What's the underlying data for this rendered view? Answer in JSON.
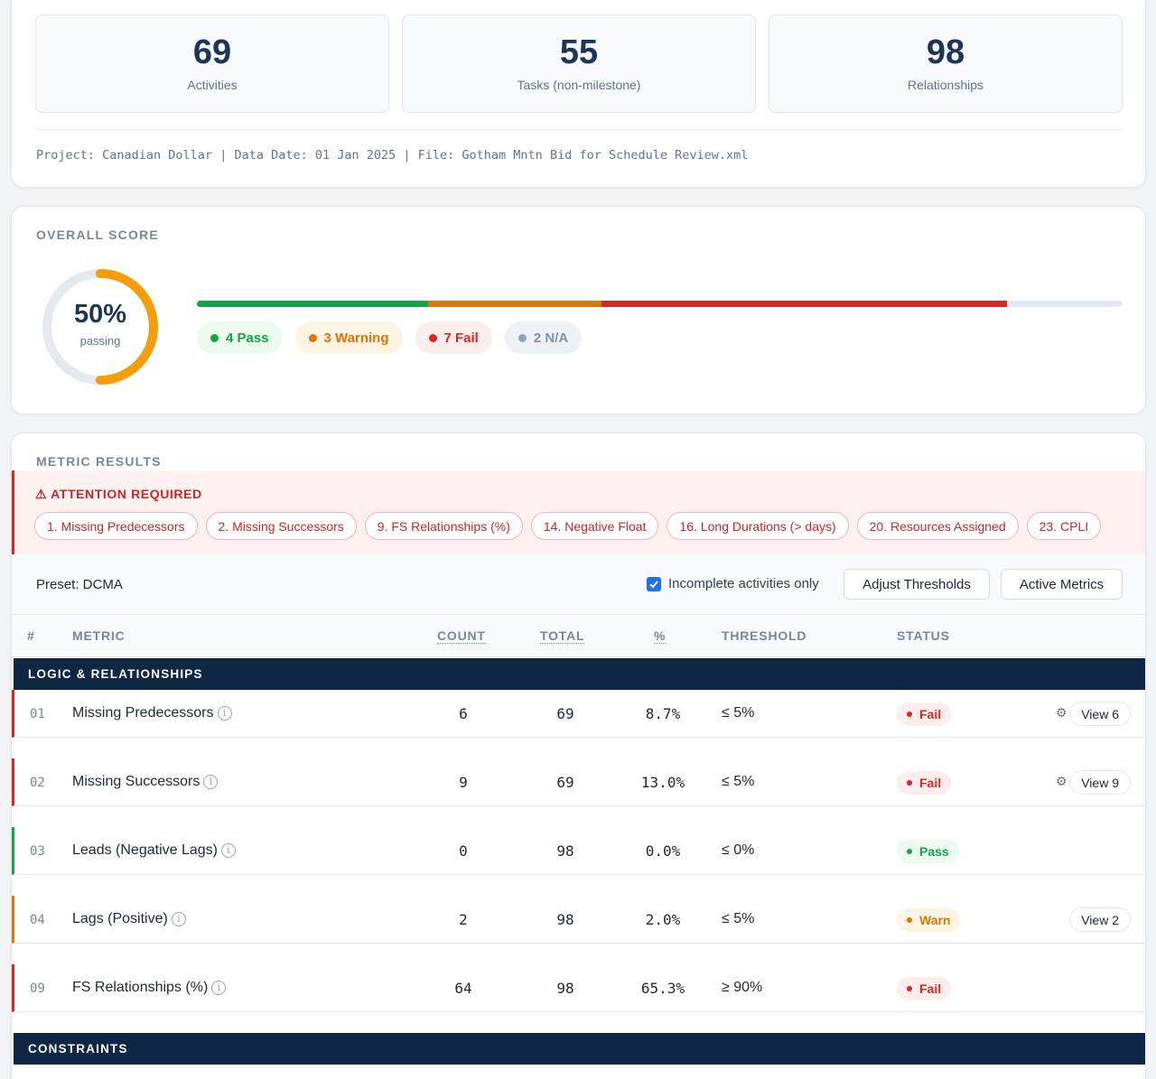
{
  "stats": [
    {
      "value": "69",
      "label": "Activities"
    },
    {
      "value": "55",
      "label": "Tasks (non-milestone)"
    },
    {
      "value": "98",
      "label": "Relationships"
    }
  ],
  "meta_line": "Project: Canadian Dollar | Data Date: 01 Jan 2025 | File: Gotham Mntn Bid for Schedule Review.xml",
  "overall": {
    "title": "OVERALL SCORE",
    "percent": "50%",
    "percent_value": 0.5,
    "passing_label": "passing",
    "counts": {
      "pass": 4,
      "warning": 3,
      "fail": 7,
      "na": 2
    },
    "pills": {
      "pass": "4 Pass",
      "warning": "3 Warning",
      "fail": "7 Fail",
      "na": "2 N/A"
    }
  },
  "colors": {
    "pass": "#16a34a",
    "warning": "#d97706",
    "fail": "#dc2626",
    "na": "#94a3b8",
    "navy": "#0f2744",
    "donut": "#f59e0b"
  },
  "metrics": {
    "title": "METRIC RESULTS",
    "attention_title": "⚠ ATTENTION REQUIRED",
    "attention_chips": [
      "1. Missing Predecessors",
      "2. Missing Successors",
      "9. FS Relationships (%)",
      "14. Negative Float",
      "16. Long Durations (> days)",
      "20. Resources Assigned",
      "23. CPLI"
    ],
    "preset": "Preset: DCMA",
    "incomplete_label": "Incomplete activities only",
    "incomplete_checked": true,
    "adjust_label": "Adjust Thresholds",
    "active_label": "Active Metrics",
    "headers": {
      "num": "#",
      "metric": "METRIC",
      "count": "COUNT",
      "total": "TOTAL",
      "pct": "%",
      "threshold": "THRESHOLD",
      "status": "STATUS"
    },
    "groups": [
      {
        "name": "LOGIC & RELATIONSHIPS",
        "rows": [
          {
            "id": "01",
            "name": "Missing Predecessors",
            "count": "6",
            "total": "69",
            "pct": "8.7%",
            "threshold": "≤ 5%",
            "status": "Fail",
            "view": "View 6",
            "gear": true
          },
          {
            "id": "02",
            "name": "Missing Successors",
            "count": "9",
            "total": "69",
            "pct": "13.0%",
            "threshold": "≤ 5%",
            "status": "Fail",
            "view": "View 9",
            "gear": true
          },
          {
            "id": "03",
            "name": "Leads (Negative Lags)",
            "count": "0",
            "total": "98",
            "pct": "0.0%",
            "threshold": "≤ 0%",
            "status": "Pass",
            "view": "",
            "gear": false
          },
          {
            "id": "04",
            "name": "Lags (Positive)",
            "count": "2",
            "total": "98",
            "pct": "2.0%",
            "threshold": "≤ 5%",
            "status": "Warn",
            "view": "View 2",
            "gear": false
          },
          {
            "id": "09",
            "name": "FS Relationships (%)",
            "count": "64",
            "total": "98",
            "pct": "65.3%",
            "threshold": "≥ 90%",
            "status": "Fail",
            "view": "",
            "gear": false
          }
        ]
      },
      {
        "name": "CONSTRAINTS",
        "rows": []
      }
    ]
  }
}
